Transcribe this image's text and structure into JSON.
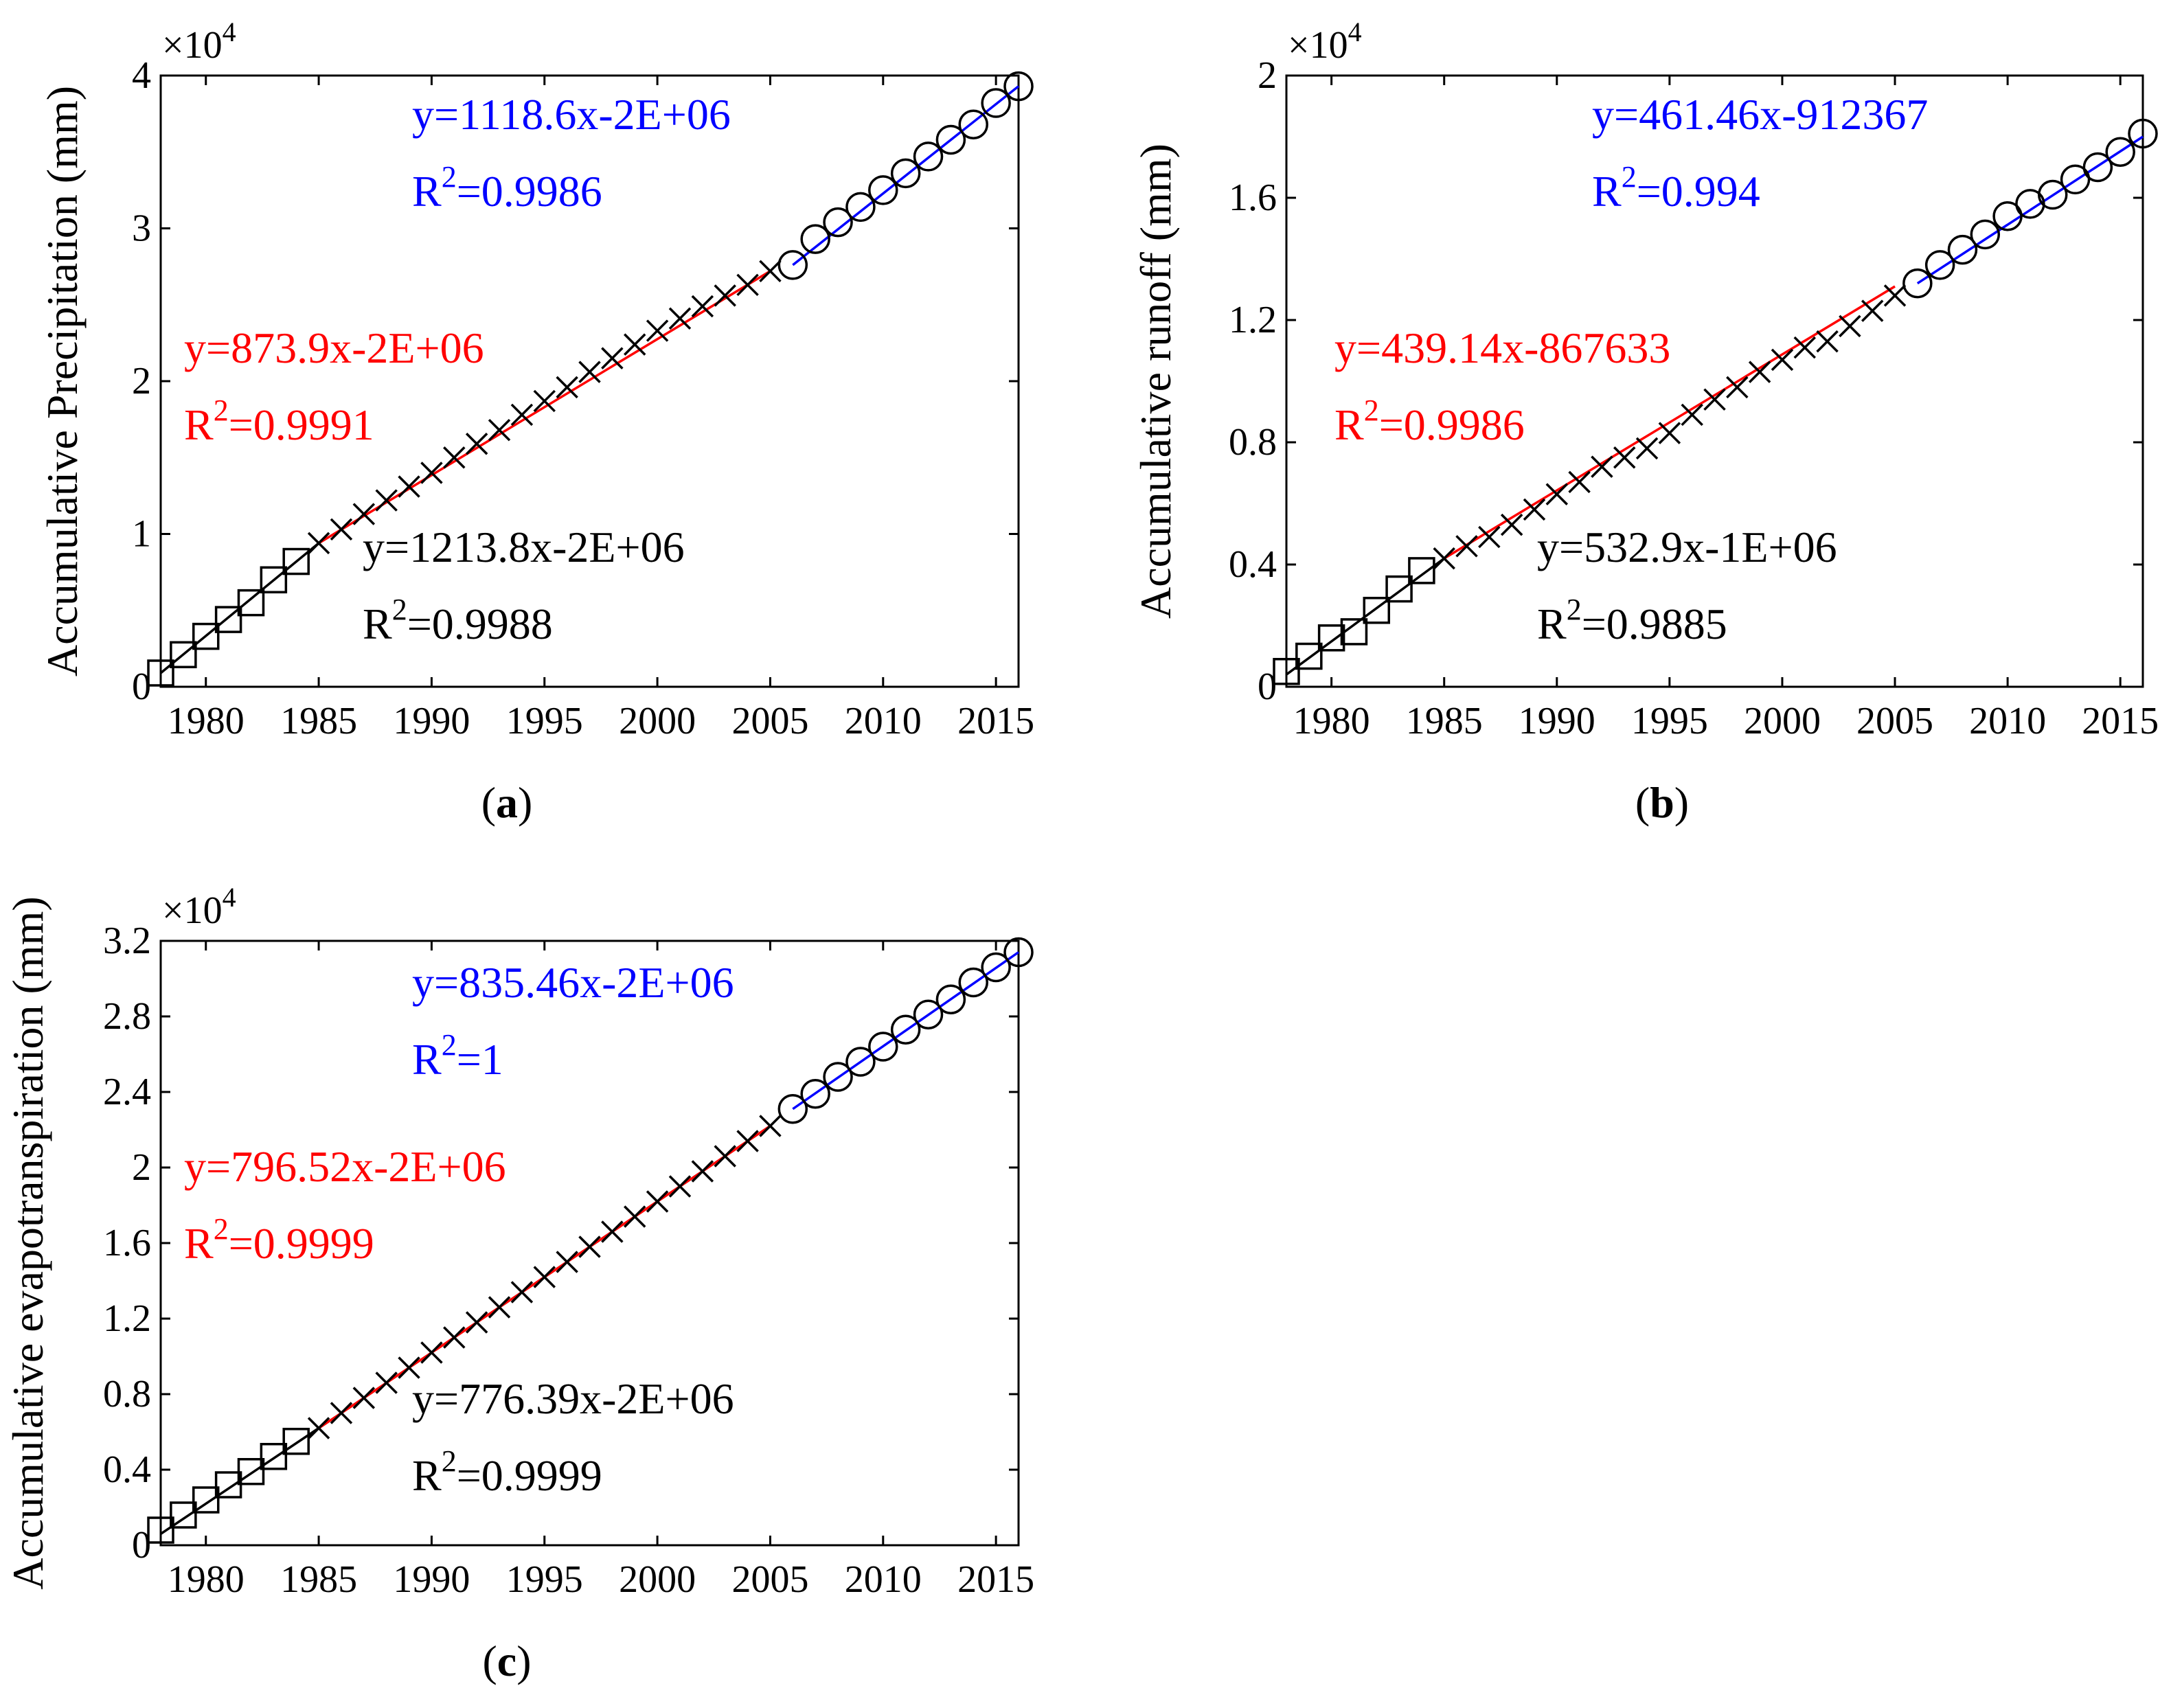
{
  "chart_data": [
    {
      "id": "a",
      "type": "scatter",
      "caption": "(a)",
      "ylabel": "Accumulative Precipitation (mm)",
      "xlabel": "",
      "multiplier": "×10",
      "multiplier_exp": "4",
      "xlim": [
        1978,
        2016
      ],
      "ylim": [
        0,
        4
      ],
      "xticks": [
        "1980",
        "1985",
        "1990",
        "1995",
        "2000",
        "2005",
        "2010",
        "2015"
      ],
      "xtick_values": [
        1980,
        1985,
        1990,
        1995,
        2000,
        2005,
        2010,
        2015
      ],
      "yticks": [
        "0",
        "1",
        "2",
        "3",
        "4"
      ],
      "ytick_values": [
        0,
        1,
        2,
        3,
        4
      ],
      "series": [
        {
          "name": "1978-1984",
          "marker": "square",
          "color": "#000000",
          "x": [
            1978,
            1979,
            1980,
            1981,
            1982,
            1983,
            1984
          ],
          "y": [
            0.09,
            0.21,
            0.33,
            0.44,
            0.55,
            0.7,
            0.82
          ]
        },
        {
          "name": "1985-2005",
          "marker": "x",
          "color": "#000000",
          "x": [
            1985,
            1986,
            1987,
            1988,
            1989,
            1990,
            1991,
            1992,
            1993,
            1994,
            1995,
            1996,
            1997,
            1998,
            1999,
            2000,
            2001,
            2002,
            2003,
            2004,
            2005
          ],
          "y": [
            0.94,
            1.03,
            1.13,
            1.22,
            1.31,
            1.4,
            1.5,
            1.59,
            1.68,
            1.78,
            1.87,
            1.96,
            2.06,
            2.15,
            2.24,
            2.33,
            2.41,
            2.49,
            2.56,
            2.63,
            2.72
          ]
        },
        {
          "name": "2006-2016",
          "marker": "circle",
          "color": "#000000",
          "x": [
            2006,
            2007,
            2008,
            2009,
            2010,
            2011,
            2012,
            2013,
            2014,
            2015,
            2016
          ],
          "y": [
            2.76,
            2.93,
            3.04,
            3.14,
            3.25,
            3.36,
            3.47,
            3.58,
            3.68,
            3.82,
            3.93
          ]
        }
      ],
      "fits": [
        {
          "color": "#000000",
          "x": [
            1978,
            1985
          ],
          "y": [
            0.09,
            0.94
          ]
        },
        {
          "color": "#ff0000",
          "x": [
            1985,
            2005
          ],
          "y": [
            0.94,
            2.72
          ]
        },
        {
          "color": "#0000ff",
          "x": [
            2006,
            2016
          ],
          "y": [
            2.76,
            3.93
          ]
        }
      ],
      "annotations": [
        {
          "color": "#0000ff",
          "eq": "y=1118.6x-2E+06",
          "r_prefix": "R",
          "r_exp": "2",
          "r_val": "=0.9986"
        },
        {
          "color": "#ff0000",
          "eq": "y=873.9x-2E+06",
          "r_prefix": "R",
          "r_exp": "2",
          "r_val": "=0.9991"
        },
        {
          "color": "#000000",
          "eq": "y=1213.8x-2E+06",
          "r_prefix": "R",
          "r_exp": "2",
          "r_val": "=0.9988"
        }
      ]
    },
    {
      "id": "b",
      "type": "scatter",
      "caption": "(b)",
      "ylabel": "Accumulative runoff (mm)",
      "xlabel": "",
      "multiplier": "×10",
      "multiplier_exp": "4",
      "xlim": [
        1978,
        2016
      ],
      "ylim": [
        0,
        2
      ],
      "xticks": [
        "1980",
        "1985",
        "1990",
        "1995",
        "2000",
        "2005",
        "2010",
        "2015"
      ],
      "xtick_values": [
        1980,
        1985,
        1990,
        1995,
        2000,
        2005,
        2010,
        2015
      ],
      "yticks": [
        "0",
        "0.4",
        "0.8",
        "1.2",
        "1.6",
        "2"
      ],
      "ytick_values": [
        0,
        0.4,
        0.8,
        1.2,
        1.6,
        2
      ],
      "series": [
        {
          "name": "1978-1984",
          "marker": "square",
          "color": "#000000",
          "x": [
            1978,
            1979,
            1980,
            1981,
            1982,
            1983,
            1984
          ],
          "y": [
            0.05,
            0.1,
            0.16,
            0.18,
            0.25,
            0.32,
            0.38
          ]
        },
        {
          "name": "1985-2005",
          "marker": "x",
          "color": "#000000",
          "x": [
            1985,
            1986,
            1987,
            1988,
            1989,
            1990,
            1991,
            1992,
            1993,
            1994,
            1995,
            1996,
            1997,
            1998,
            1999,
            2000,
            2001,
            2002,
            2003,
            2004,
            2005
          ],
          "y": [
            0.42,
            0.46,
            0.49,
            0.53,
            0.58,
            0.63,
            0.67,
            0.72,
            0.75,
            0.78,
            0.83,
            0.89,
            0.94,
            0.98,
            1.03,
            1.07,
            1.11,
            1.13,
            1.18,
            1.23,
            1.28
          ]
        },
        {
          "name": "2006-2016",
          "marker": "circle",
          "color": "#000000",
          "x": [
            2006,
            2007,
            2008,
            2009,
            2010,
            2011,
            2012,
            2013,
            2014,
            2015,
            2016
          ],
          "y": [
            1.32,
            1.38,
            1.43,
            1.48,
            1.54,
            1.58,
            1.61,
            1.66,
            1.7,
            1.75,
            1.81
          ]
        }
      ],
      "fits": [
        {
          "color": "#000000",
          "x": [
            1978,
            1985
          ],
          "y": [
            0.04,
            0.42
          ]
        },
        {
          "color": "#ff0000",
          "x": [
            1985,
            2005
          ],
          "y": [
            0.42,
            1.31
          ]
        },
        {
          "color": "#0000ff",
          "x": [
            2006,
            2016
          ],
          "y": [
            1.32,
            1.8
          ]
        }
      ],
      "annotations": [
        {
          "color": "#0000ff",
          "eq": "y=461.46x-912367",
          "r_prefix": "R",
          "r_exp": "2",
          "r_val": "=0.994"
        },
        {
          "color": "#ff0000",
          "eq": "y=439.14x-867633",
          "r_prefix": "R",
          "r_exp": "2",
          "r_val": "=0.9986"
        },
        {
          "color": "#000000",
          "eq": "y=532.9x-1E+06",
          "r_prefix": "R",
          "r_exp": "2",
          "r_val": "=0.9885"
        }
      ]
    },
    {
      "id": "c",
      "type": "scatter",
      "caption": "(c)",
      "ylabel": "Accumulative evapotranspiration (mm)",
      "xlabel": "",
      "multiplier": "×10",
      "multiplier_exp": "4",
      "xlim": [
        1978,
        2016
      ],
      "ylim": [
        0,
        3.2
      ],
      "xticks": [
        "1980",
        "1985",
        "1990",
        "1995",
        "2000",
        "2005",
        "2010",
        "2015"
      ],
      "xtick_values": [
        1980,
        1985,
        1990,
        1995,
        2000,
        2005,
        2010,
        2015
      ],
      "yticks": [
        "0",
        "0.4",
        "0.8",
        "1.2",
        "1.6",
        "2",
        "2.4",
        "2.8",
        "3.2"
      ],
      "ytick_values": [
        0,
        0.4,
        0.8,
        1.2,
        1.6,
        2,
        2.4,
        2.8,
        3.2
      ],
      "series": [
        {
          "name": "1978-1984",
          "marker": "square",
          "color": "#000000",
          "x": [
            1978,
            1979,
            1980,
            1981,
            1982,
            1983,
            1984
          ],
          "y": [
            0.08,
            0.16,
            0.24,
            0.32,
            0.39,
            0.47,
            0.55
          ]
        },
        {
          "name": "1985-2005",
          "marker": "x",
          "color": "#000000",
          "x": [
            1985,
            1986,
            1987,
            1988,
            1989,
            1990,
            1991,
            1992,
            1993,
            1994,
            1995,
            1996,
            1997,
            1998,
            1999,
            2000,
            2001,
            2002,
            2003,
            2004,
            2005
          ],
          "y": [
            0.62,
            0.7,
            0.78,
            0.86,
            0.94,
            1.02,
            1.1,
            1.18,
            1.26,
            1.34,
            1.42,
            1.5,
            1.58,
            1.66,
            1.74,
            1.82,
            1.9,
            1.98,
            2.06,
            2.14,
            2.22
          ]
        },
        {
          "name": "2006-2016",
          "marker": "circle",
          "color": "#000000",
          "x": [
            2006,
            2007,
            2008,
            2009,
            2010,
            2011,
            2012,
            2013,
            2014,
            2015,
            2016
          ],
          "y": [
            2.31,
            2.39,
            2.48,
            2.56,
            2.64,
            2.73,
            2.81,
            2.89,
            2.98,
            3.06,
            3.14
          ]
        }
      ],
      "fits": [
        {
          "color": "#000000",
          "x": [
            1978,
            1985
          ],
          "y": [
            0.06,
            0.62
          ]
        },
        {
          "color": "#ff0000",
          "x": [
            1985,
            2005
          ],
          "y": [
            0.62,
            2.22
          ]
        },
        {
          "color": "#0000ff",
          "x": [
            2006,
            2016
          ],
          "y": [
            2.31,
            3.14
          ]
        }
      ],
      "annotations": [
        {
          "color": "#0000ff",
          "eq": "y=835.46x-2E+06",
          "r_prefix": "R",
          "r_exp": "2",
          "r_val": "=1"
        },
        {
          "color": "#ff0000",
          "eq": "y=796.52x-2E+06",
          "r_prefix": "R",
          "r_exp": "2",
          "r_val": "=0.9999"
        },
        {
          "color": "#000000",
          "eq": "y=776.39x-2E+06",
          "r_prefix": "R",
          "r_exp": "2",
          "r_val": "=0.9999"
        }
      ]
    }
  ]
}
